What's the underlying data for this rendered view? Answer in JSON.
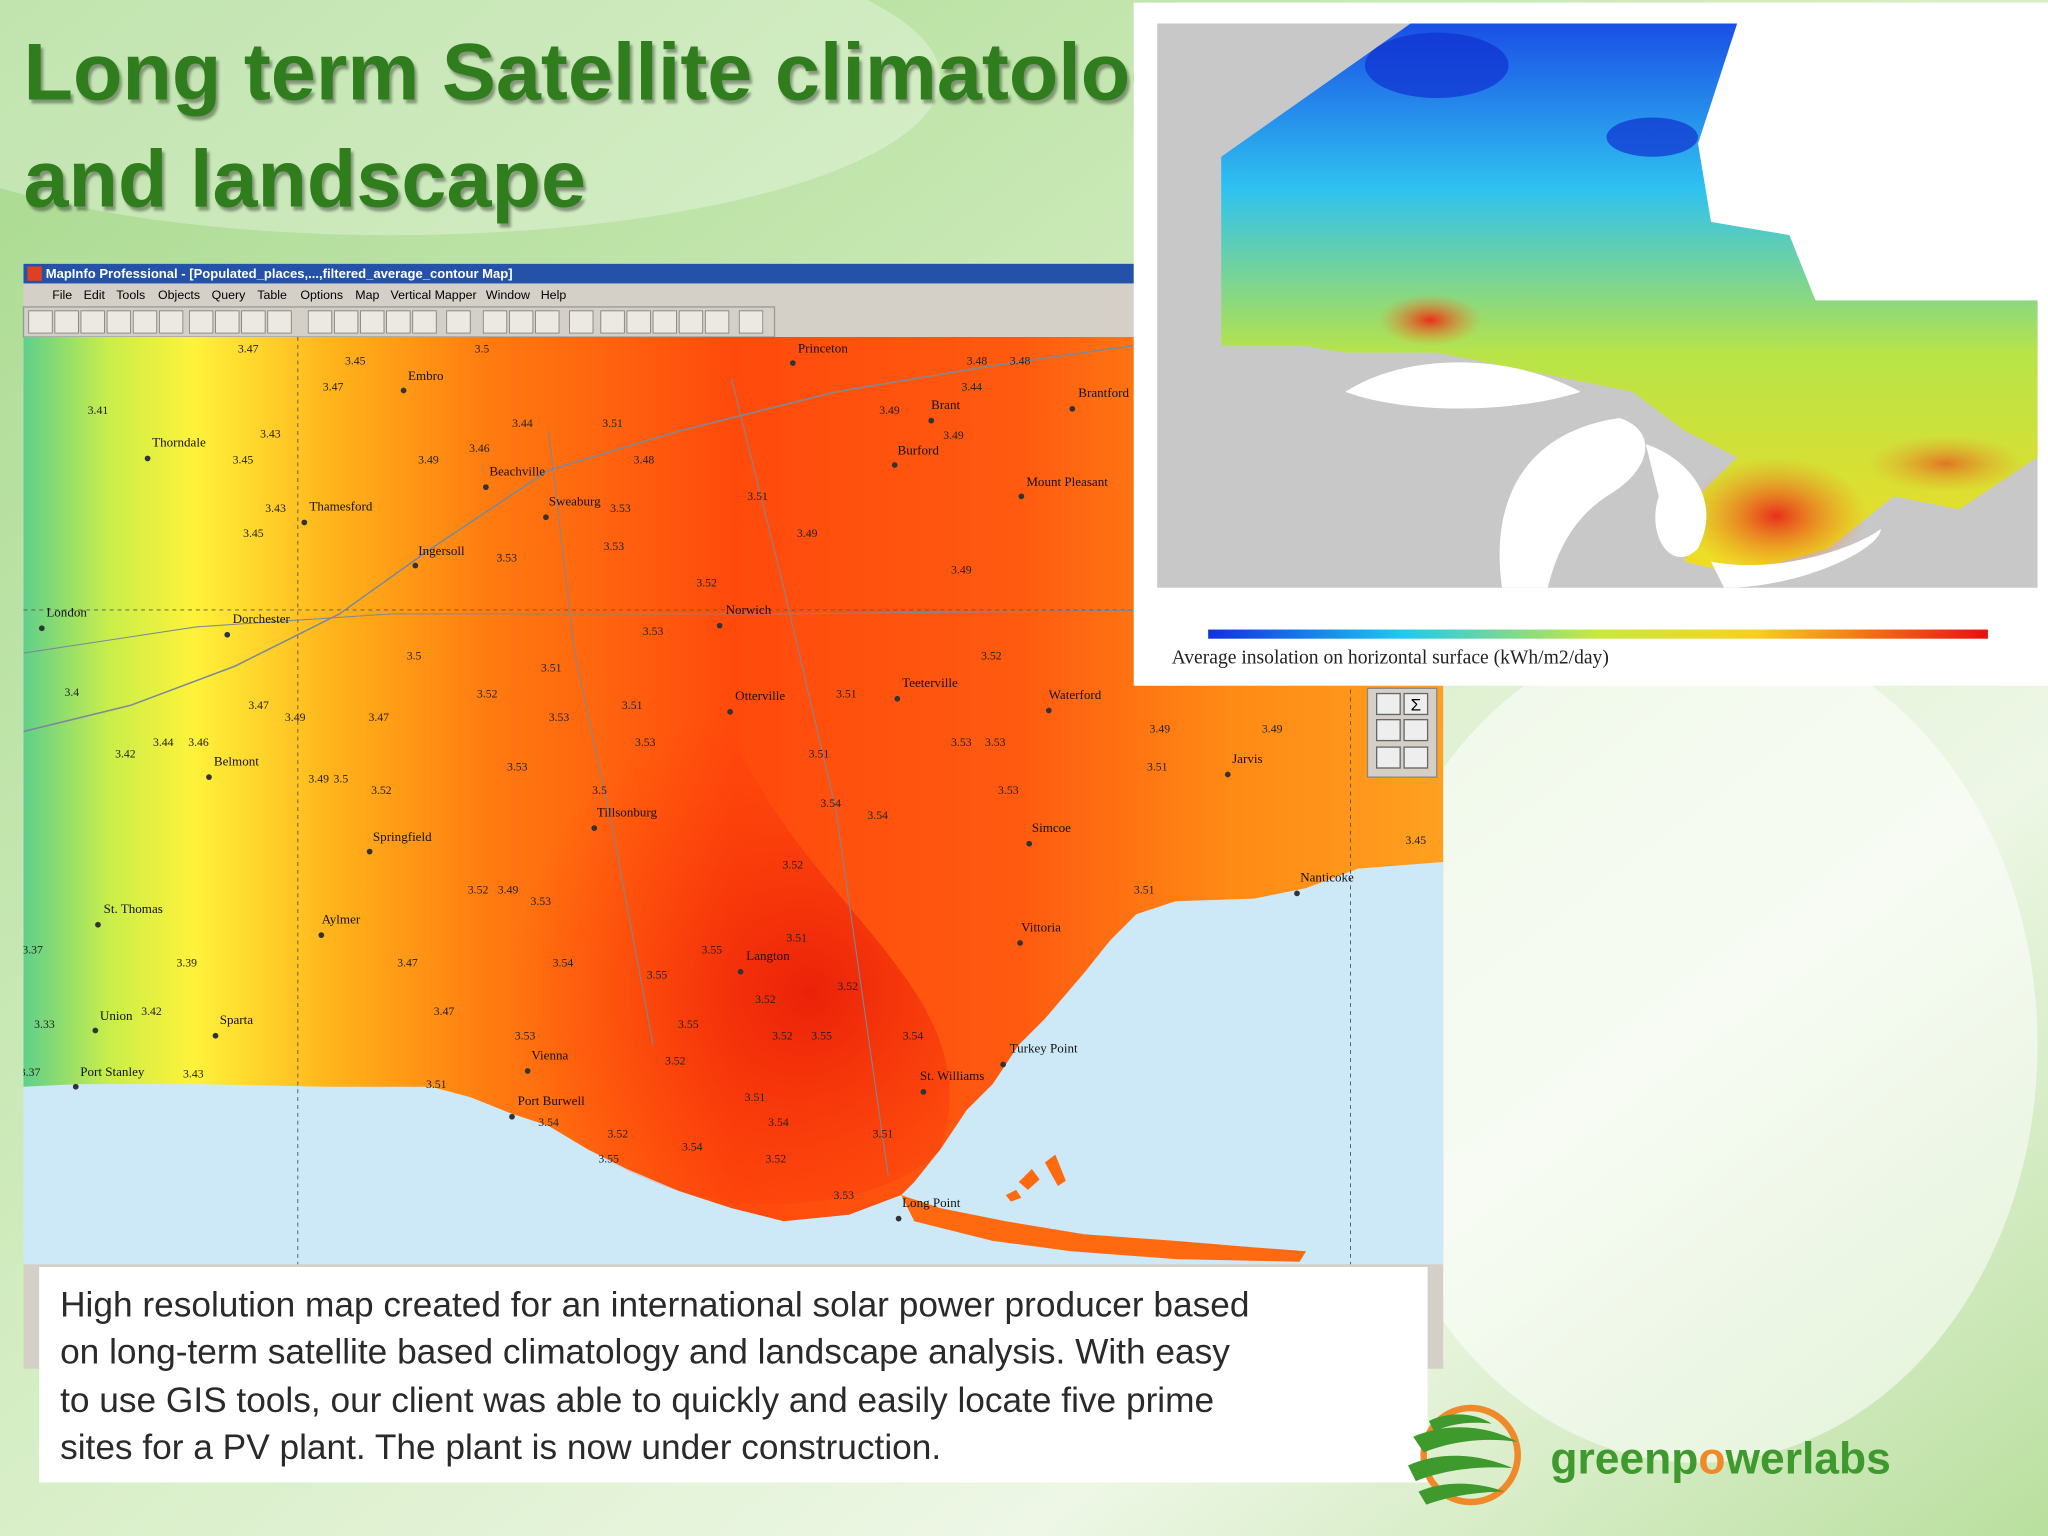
{
  "title": {
    "lines": [
      "Long term Satellite climatology",
      "and landscape"
    ]
  },
  "window": {
    "title": "MapInfo Professional - [Populated_places,...,filtered_average_contour Map]",
    "menu": [
      "File",
      "Edit",
      "Tools",
      "Objects",
      "Query",
      "Table",
      "Options",
      "Map",
      "Vertical Mapper",
      "Window",
      "Help"
    ],
    "palette_symbol": "Σ"
  },
  "map": {
    "places": [
      "Princeton",
      "Embro",
      "Brant",
      "Brantford",
      "Thorndale",
      "Beachville",
      "Burford",
      "Mount Pleasant",
      "Sweaburg",
      "Thamesford",
      "Ingersoll",
      "London",
      "Dorchester",
      "Norwich",
      "Teeterville",
      "Waterford",
      "Otterville",
      "Jarvis",
      "Belmont",
      "Tillsonburg",
      "Simcoe",
      "Springfield",
      "Nanticoke",
      "St. Thomas",
      "Aylmer",
      "Vittoria",
      "Langton",
      "Union",
      "Sparta",
      "Turkey Point",
      "Vienna",
      "St. Williams",
      "Port Stanley",
      "Port Burwell",
      "Long Point"
    ],
    "contours": [
      3.47,
      3.45,
      3.5,
      3.47,
      3.41,
      3.43,
      3.45,
      3.49,
      3.46,
      3.44,
      3.51,
      3.48,
      3.48,
      3.48,
      3.44,
      3.49,
      3.49,
      3.51,
      3.53,
      3.49,
      3.43,
      3.45,
      3.53,
      3.53,
      3.49,
      3.52,
      3.53,
      3.5,
      3.51,
      3.52,
      3.4,
      3.52,
      3.47,
      3.49,
      3.47,
      3.53,
      3.51,
      3.51,
      3.49,
      3.49,
      3.42,
      3.44,
      3.46,
      3.53,
      3.53,
      3.53,
      3.51,
      3.51,
      3.49,
      3.5,
      3.52,
      3.53,
      3.5,
      3.54,
      3.54,
      3.53,
      3.45,
      3.52,
      3.52,
      3.49,
      3.53,
      3.51,
      3.51,
      3.37,
      3.39,
      3.47,
      3.55,
      3.54,
      3.55,
      3.52,
      3.52,
      3.42,
      3.47,
      3.33,
      3.55,
      3.53,
      3.52,
      3.55,
      3.54,
      3.52,
      3.37,
      3.43,
      3.51,
      3.51,
      3.54,
      3.54,
      3.51,
      3.52,
      3.54,
      3.55,
      3.52,
      3.53
    ]
  },
  "inset": {
    "caption": "Average insolation on horizontal surface (kWh/m2/day)"
  },
  "description": {
    "lines": [
      "High resolution map created for an international solar power producer based",
      "on long-term satellite based climatology and landscape analysis. With easy",
      "to use GIS tools, our client was able to quickly and easily locate five prime",
      "sites for a PV plant.  The plant is now under construction."
    ]
  },
  "logo": {
    "parts": [
      "greenp",
      "o",
      "werlabs"
    ]
  }
}
